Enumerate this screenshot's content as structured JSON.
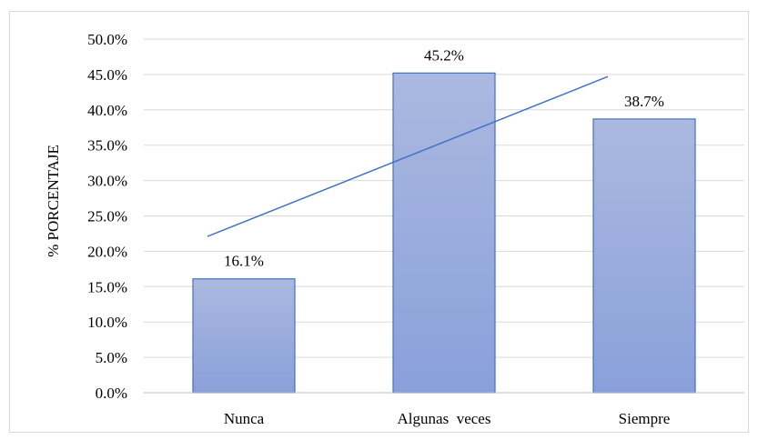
{
  "chart_data": {
    "type": "bar",
    "categories": [
      "Nunca",
      "Algunas  veces",
      "Siempre"
    ],
    "values": [
      16.1,
      45.2,
      38.7
    ],
    "data_labels": [
      "16.1%",
      "45.2%",
      "38.7%"
    ],
    "title": "",
    "xlabel": "",
    "ylabel": "% PORCENTAJE",
    "ylim": [
      0,
      50
    ],
    "yticks": [
      0,
      5,
      10,
      15,
      20,
      25,
      30,
      35,
      40,
      45,
      50
    ],
    "ytick_labels": [
      "0.0%",
      "5.0%",
      "10.0%",
      "15.0%",
      "20.0%",
      "25.0%",
      "30.0%",
      "35.0%",
      "40.0%",
      "45.0%",
      "50.0%"
    ],
    "trendline": {
      "type": "linear",
      "start": 22.1,
      "end": 44.7
    },
    "grid": true,
    "legend": "none",
    "colors": {
      "bar_top": "#abb9e0",
      "bar_bottom": "#8aa0da",
      "bar_border": "#4472c4",
      "trendline": "#4472c4",
      "grid": "#d9d9d9",
      "axis": "#bfbfbf"
    }
  }
}
